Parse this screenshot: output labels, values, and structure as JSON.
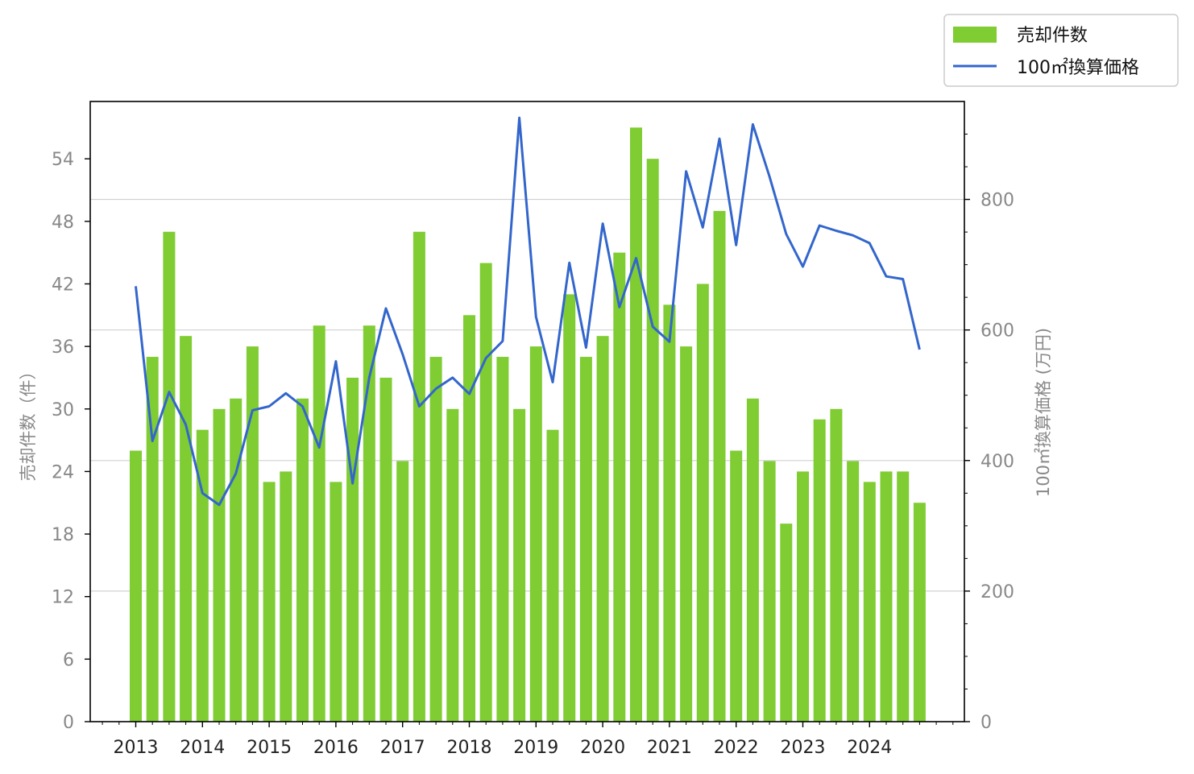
{
  "chart_data": {
    "type": "bar+line",
    "categories": [
      "2013Q1",
      "2013Q2",
      "2013Q3",
      "2013Q4",
      "2014Q1",
      "2014Q2",
      "2014Q3",
      "2014Q4",
      "2015Q1",
      "2015Q2",
      "2015Q3",
      "2015Q4",
      "2016Q1",
      "2016Q2",
      "2016Q3",
      "2016Q4",
      "2017Q1",
      "2017Q2",
      "2017Q3",
      "2017Q4",
      "2018Q1",
      "2018Q2",
      "2018Q3",
      "2018Q4",
      "2019Q1",
      "2019Q2",
      "2019Q3",
      "2019Q4",
      "2020Q1",
      "2020Q2",
      "2020Q3",
      "2020Q4",
      "2021Q1",
      "2021Q2",
      "2021Q3",
      "2021Q4",
      "2022Q1",
      "2022Q2",
      "2022Q3",
      "2022Q4",
      "2023Q1",
      "2023Q2",
      "2023Q3",
      "2023Q4",
      "2024Q1",
      "2024Q2",
      "2024Q3",
      "2024Q4"
    ],
    "x_tick_labels": [
      "2013",
      "2014",
      "2015",
      "2016",
      "2017",
      "2018",
      "2019",
      "2020",
      "2021",
      "2022",
      "2023",
      "2024"
    ],
    "series": [
      {
        "name": "売却件数",
        "kind": "bar",
        "axis": "left",
        "color": "#7fcc33",
        "values": [
          26,
          35,
          47,
          37,
          28,
          30,
          31,
          36,
          23,
          24,
          31,
          38,
          23,
          33,
          38,
          33,
          25,
          47,
          35,
          30,
          39,
          44,
          35,
          30,
          36,
          28,
          41,
          35,
          37,
          45,
          57,
          54,
          40,
          36,
          42,
          49,
          26,
          31,
          25,
          19,
          24,
          29,
          30,
          25,
          23,
          24,
          24,
          21
        ]
      },
      {
        "name": "100㎡換算価格",
        "kind": "line",
        "axis": "right",
        "color": "#3366cc",
        "values": [
          667,
          430,
          505,
          455,
          350,
          332,
          380,
          477,
          483,
          503,
          483,
          420,
          552,
          365,
          527,
          633,
          563,
          483,
          510,
          527,
          502,
          557,
          583,
          925,
          620,
          520,
          703,
          573,
          763,
          635,
          710,
          605,
          582,
          843,
          757,
          893,
          730,
          915,
          835,
          747,
          697,
          760,
          752,
          745,
          733,
          682,
          678,
          570
        ]
      }
    ],
    "ylabel_left": "売却件数（件）",
    "ylabel_right": "100㎡換算価格 (万円)",
    "ylim_left": [
      0,
      59.5
    ],
    "ylim_right": [
      0,
      950
    ],
    "yticks_left": [
      0,
      6,
      12,
      18,
      24,
      30,
      36,
      42,
      48,
      54
    ],
    "yticks_right": [
      0,
      200,
      400,
      600,
      800
    ],
    "grid": "horizontal, right-axis major ticks",
    "legend_position": "top-right, outside plot"
  },
  "legend": {
    "bar_label": "売却件数",
    "line_label": "100㎡換算価格"
  },
  "axes": {
    "left_title": "売却件数（件）",
    "right_title": "100㎡換算価格 (万円)"
  },
  "colors": {
    "bar": "#7fcc33",
    "line": "#3366cc",
    "grid": "#d0d0d0",
    "tick_text": "#888888"
  }
}
